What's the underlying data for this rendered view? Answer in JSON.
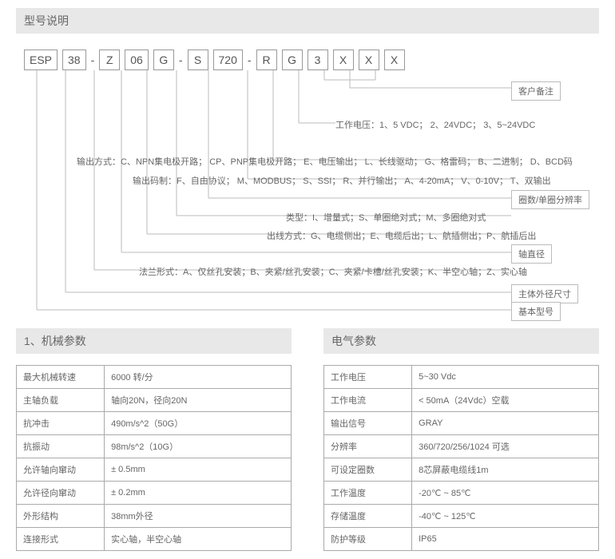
{
  "headers": {
    "model": "型号说明",
    "mech": "1、机械参数",
    "elec": "电气参数"
  },
  "code": [
    "ESP",
    "38",
    "Z",
    "06",
    "G",
    "S",
    "720",
    "R",
    "G",
    "3",
    "X",
    "X",
    "X"
  ],
  "labels": {
    "remark": "客户备注",
    "turns": "圈数/单圈分辨率",
    "shaft": "轴直径",
    "dia": "主体外径尺寸",
    "base": "基本型号"
  },
  "descs": {
    "volt": "工作电压：1、5 VDC； 2、24VDC； 3、5~24VDC",
    "output": "输出方式：C、NPN集电极开路； CP、PNP集电极开路； E、电压输出； L、长线驱动； G、格雷码； B、二进制； D、BCD码",
    "protocol": "输出码制：F、自由协议； M、MODBUS； S、SSI； R、并行输出； A、4-20mA； V、0-10V； T、双输出",
    "type": "类型：I、增量式；S、单圈绝对式；M、多圈绝对式",
    "cable": "出线方式：G、电缆侧出；E、电缆后出；L、航插侧出；P、航插后出",
    "flange": "法兰形式：A、仅丝孔安装；B、夹紧/丝孔安装；C、夹紧/卡槽/丝孔安装；K、半空心轴；Z、实心轴"
  },
  "mech": [
    [
      "最大机械转速",
      "6000 转/分"
    ],
    [
      "主轴负载",
      "轴向20N，径向20N"
    ],
    [
      "抗冲击",
      "490m/s^2（50G）"
    ],
    [
      "抗振动",
      "98m/s^2（10G）"
    ],
    [
      "允许轴向窜动",
      "± 0.5mm"
    ],
    [
      "允许径向窜动",
      "± 0.2mm"
    ],
    [
      "外形结构",
      "38mm外径"
    ],
    [
      "连接形式",
      "实心轴，半空心轴"
    ]
  ],
  "elec": [
    [
      "工作电压",
      "5~30 Vdc"
    ],
    [
      "工作电流",
      "< 50mA（24Vdc）空载"
    ],
    [
      "输出信号",
      "GRAY"
    ],
    [
      "分辨率",
      "360/720/256/1024 可选"
    ],
    [
      "可设定圈数",
      "8芯屏蔽电缆线1m"
    ],
    [
      "工作温度",
      "-20℃ ~ 85℃"
    ],
    [
      "存储温度",
      "-40℃ ~ 125℃"
    ],
    [
      "防护等级",
      "IP65"
    ]
  ]
}
